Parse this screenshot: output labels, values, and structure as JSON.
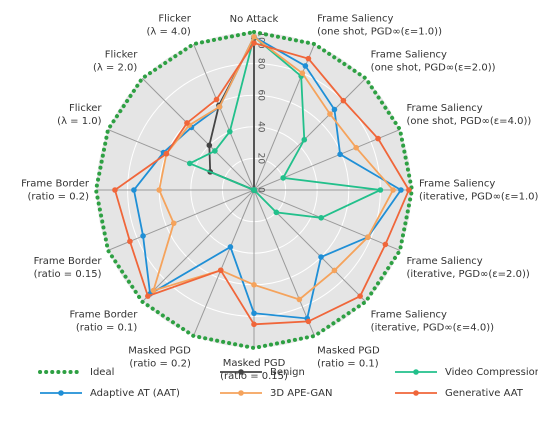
{
  "chart_data": {
    "type": "radar",
    "categories": [
      [
        "No Attack"
      ],
      [
        "Frame Saliency",
        "(one shot, PGD∞(ε=1.0))"
      ],
      [
        "Frame Saliency",
        "(one shot, PGD∞(ε=2.0))"
      ],
      [
        "Frame Saliency",
        "(one shot, PGD∞(ε=4.0))"
      ],
      [
        "Frame Saliency",
        "(iterative, PGD∞(ε=1.0))"
      ],
      [
        "Frame Saliency",
        "(iterative, PGD∞(ε=2.0))"
      ],
      [
        "Frame Saliency",
        "(iterative, PGD∞(ε=4.0))"
      ],
      [
        "Masked PGD",
        "(ratio = 0.1)"
      ],
      [
        "Masked PGD",
        "(ratio = 0.15)"
      ],
      [
        "Masked PGD",
        "(ratio = 0.2)"
      ],
      [
        "Frame Border",
        "(ratio = 0.1)"
      ],
      [
        "Frame Border",
        "(ratio = 0.15)"
      ],
      [
        "Frame Border",
        "(ratio = 0.2)"
      ],
      [
        "Flicker",
        "(λ = 1.0)"
      ],
      [
        "Flicker",
        "(λ = 2.0)"
      ],
      [
        "Flicker",
        "(λ = 4.0)"
      ]
    ],
    "rlim": [
      0,
      100
    ],
    "rticks": [
      0,
      20,
      40,
      60,
      80,
      100
    ],
    "series": [
      {
        "name": "Ideal",
        "color": "#2ea043",
        "dash": "dot",
        "values": [
          100,
          100,
          100,
          100,
          100,
          100,
          100,
          100,
          100,
          100,
          100,
          100,
          100,
          100,
          100,
          100
        ]
      },
      {
        "name": "Benign",
        "color": "#444444",
        "values": [
          96,
          0,
          0,
          0,
          0,
          0,
          0,
          0,
          0,
          0,
          0,
          0,
          0,
          30,
          40,
          58
        ]
      },
      {
        "name": "Video Compression",
        "color": "#22c08b",
        "values": [
          97,
          78,
          45,
          20,
          80,
          46,
          20,
          0,
          0,
          0,
          0,
          0,
          0,
          44,
          35,
          40
        ]
      },
      {
        "name": "Adaptive AT (AAT)",
        "color": "#1f8fd6",
        "values": [
          97,
          85,
          72,
          59,
          93,
          78,
          60,
          88,
          78,
          39,
          93,
          76,
          76,
          62,
          56,
          57
        ]
      },
      {
        "name": "3D APE-GAN",
        "color": "#f5a35c",
        "values": [
          97,
          80,
          68,
          70,
          88,
          78,
          72,
          75,
          60,
          55,
          90,
          55,
          60,
          60,
          58,
          57
        ]
      },
      {
        "name": "Generative AAT",
        "color": "#f0663a",
        "values": [
          93,
          90,
          80,
          85,
          98,
          90,
          95,
          90,
          85,
          55,
          95,
          85,
          88,
          60,
          60,
          62
        ]
      }
    ]
  }
}
